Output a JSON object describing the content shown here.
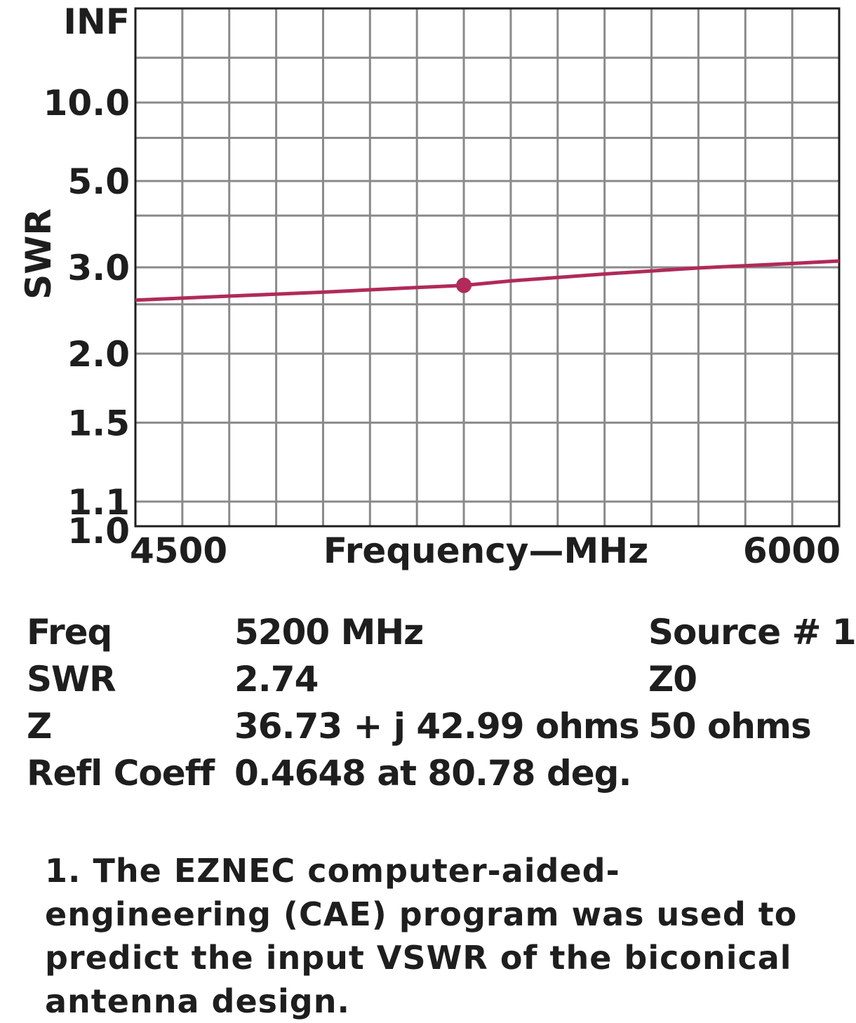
{
  "chart_data": {
    "type": "line",
    "xlabel": "Frequency—MHz",
    "ylabel": "SWR",
    "xlim": [
      4500,
      6000
    ],
    "x_ticks": [
      "4500",
      "6000"
    ],
    "y_scale": "reflection-coefficient (SWR chart scale)",
    "y_ticks": [
      "INF",
      "10.0",
      "5.0",
      "3.0",
      "2.0",
      "1.5",
      "1.1",
      "1.0"
    ],
    "grid": true,
    "series": [
      {
        "color": "#b02a5a",
        "x": [
          4500,
          4700,
          4900,
          5100,
          5200,
          5300,
          5500,
          5700,
          5900,
          6000
        ],
        "y": [
          2.55,
          2.6,
          2.65,
          2.71,
          2.74,
          2.8,
          2.9,
          2.99,
          3.06,
          3.1
        ]
      }
    ],
    "marker": {
      "x": 5200,
      "y": 2.74
    }
  },
  "readout": {
    "rows": [
      {
        "label": "Freq",
        "value": "5200 MHz",
        "extra": "Source # 1"
      },
      {
        "label": "SWR",
        "value": "2.74",
        "extra": "Z0"
      },
      {
        "label": "Z",
        "value": "36.73 + j 42.99 ohms",
        "extra": "50 ohms"
      },
      {
        "label": "Refl Coeff",
        "value": "0.4648 at 80.78 deg.",
        "extra": ""
      }
    ]
  },
  "caption": "1. The EZNEC computer-aided-engineering (CAE) program was used to predict the input VSWR of the biconical antenna design."
}
